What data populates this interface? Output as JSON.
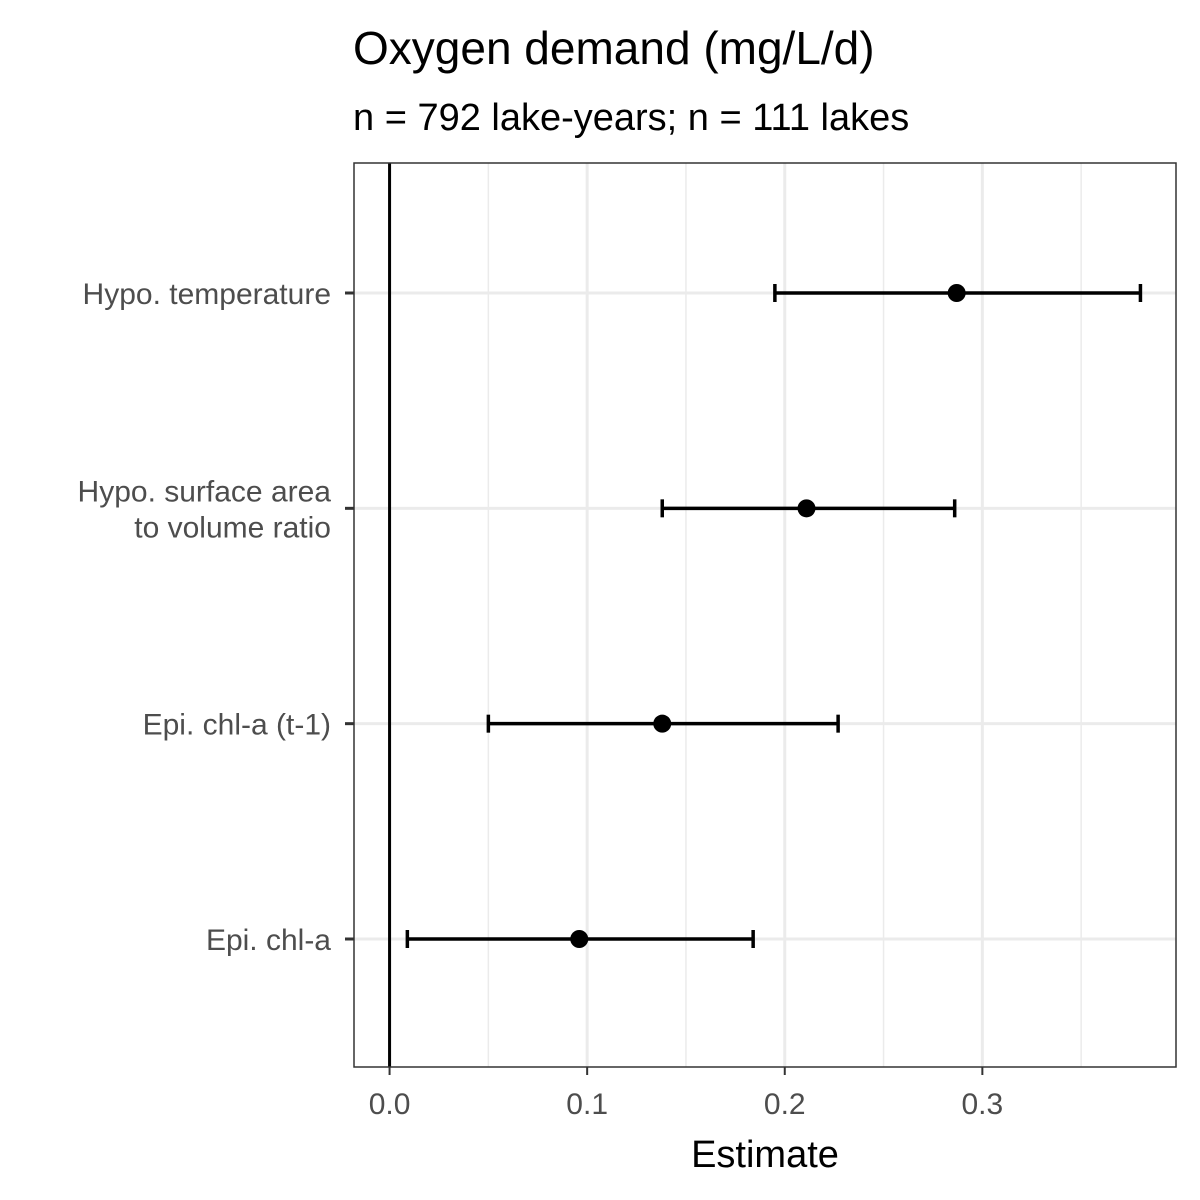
{
  "chart_data": {
    "type": "scatter",
    "title": "Oxygen demand (mg/L/d)",
    "subtitle": "n = 792 lake-years; n = 111 lakes",
    "xlabel": "Estimate",
    "ylabel": "",
    "xlim": [
      -0.018,
      0.398
    ],
    "xticks": [
      0.0,
      0.1,
      0.2,
      0.3
    ],
    "xtick_labels": [
      "0.0",
      "0.1",
      "0.2",
      "0.3"
    ],
    "reference_line_x": 0,
    "grid": true,
    "categories": [
      [
        "Hypo. temperature"
      ],
      [
        "Hypo. surface area",
        "to volume ratio"
      ],
      [
        "Epi. chl-a (t-1)"
      ],
      [
        "Epi. chl-a"
      ]
    ],
    "series": [
      {
        "estimate": [
          0.287,
          0.211,
          0.138,
          0.096
        ],
        "lower": [
          0.195,
          0.138,
          0.05,
          0.009
        ],
        "upper": [
          0.38,
          0.286,
          0.227,
          0.184
        ]
      }
    ],
    "colors": {
      "points": "#000000",
      "axis_text": "#4d4d4d",
      "grid": "#ebebeb",
      "panel_border": "#333333"
    }
  }
}
